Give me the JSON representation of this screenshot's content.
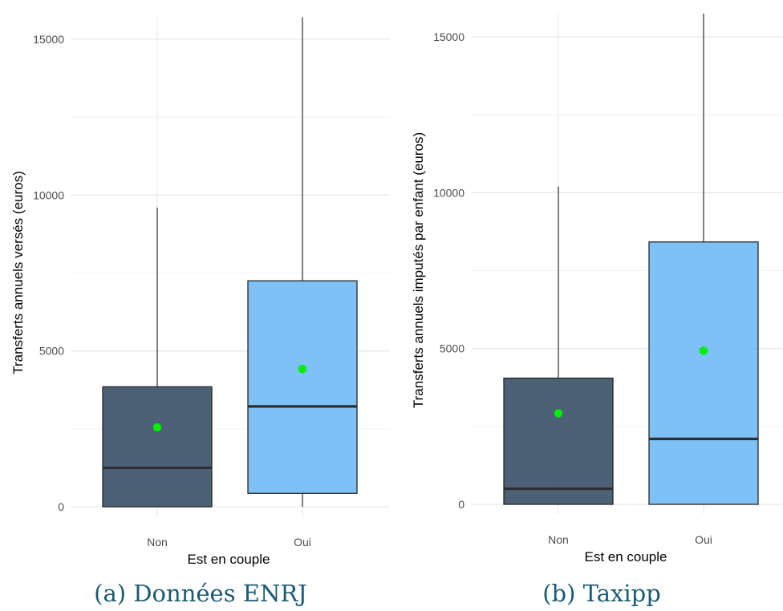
{
  "chart_data": [
    {
      "type": "box",
      "caption": "(a) Données ENRJ",
      "title": "",
      "xlabel": "Est en couple",
      "ylabel": "Transferts annuels versés (euros)",
      "ylim": [
        -300,
        15750
      ],
      "yticks": [
        0,
        5000,
        10000,
        15000
      ],
      "categories": [
        "Non",
        "Oui"
      ],
      "colors": [
        "#334a63",
        "#6bb8f5"
      ],
      "mean_color": "#00ee00",
      "boxes": [
        {
          "name": "Non",
          "whisker_low": 0,
          "q1": 0,
          "median": 1250,
          "q3": 3850,
          "whisker_high": 9600,
          "mean": 2550
        },
        {
          "name": "Oui",
          "whisker_low": 0,
          "q1": 430,
          "median": 3220,
          "q3": 7250,
          "whisker_high": 15700,
          "mean": 4420
        }
      ]
    },
    {
      "type": "box",
      "caption": "(b) Taxipp",
      "title": "",
      "xlabel": "Est en couple",
      "ylabel": "Transferts annuels imputés par enfant (euros)",
      "ylim": [
        -300,
        15750
      ],
      "yticks": [
        0,
        5000,
        10000,
        15000
      ],
      "categories": [
        "Non",
        "Oui"
      ],
      "colors": [
        "#334a63",
        "#6bb8f5"
      ],
      "mean_color": "#00ee00",
      "boxes": [
        {
          "name": "Non",
          "whisker_low": 0,
          "q1": 0,
          "median": 500,
          "q3": 4050,
          "whisker_high": 10200,
          "mean": 2920
        },
        {
          "name": "Oui",
          "whisker_low": 0,
          "q1": 0,
          "median": 2100,
          "q3": 8420,
          "whisker_high": 15750,
          "mean": 4930
        }
      ]
    }
  ]
}
